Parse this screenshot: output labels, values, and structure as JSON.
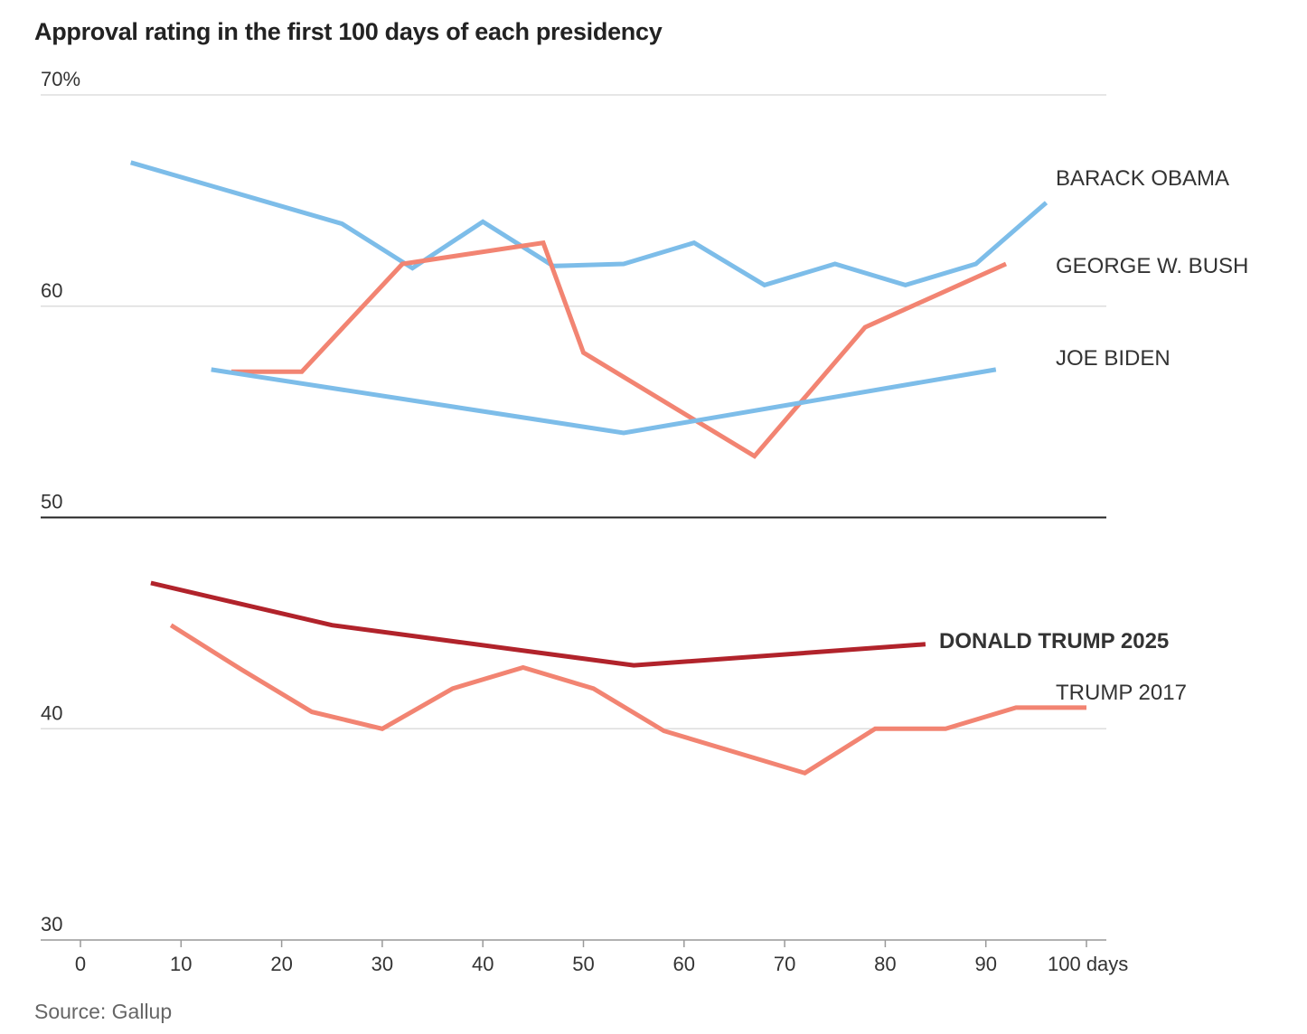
{
  "chart_data": {
    "type": "line",
    "title": "Approval rating in the first 100 days of each presidency",
    "source": "Source: Gallup",
    "xlabel": "",
    "ylabel": "",
    "xlim": [
      0,
      100
    ],
    "ylim": [
      30,
      70
    ],
    "x_ticks": [
      0,
      10,
      20,
      30,
      40,
      50,
      60,
      70,
      80,
      90,
      100
    ],
    "x_tick_labels": [
      "0",
      "10",
      "20",
      "30",
      "40",
      "50",
      "60",
      "70",
      "80",
      "90",
      "100 days"
    ],
    "y_ticks": [
      30,
      40,
      50,
      60,
      70
    ],
    "y_tick_labels": [
      "30",
      "40",
      "50",
      "60",
      "70%"
    ],
    "reference_line": 50,
    "series": [
      {
        "name": "BARACK OBAMA",
        "color": "#7dbde9",
        "bold": false,
        "x": [
          5,
          26,
          33,
          40,
          47,
          54,
          61,
          68,
          75,
          82,
          89,
          96
        ],
        "y": [
          66.8,
          63.9,
          61.8,
          64,
          61.9,
          62,
          63,
          61,
          62,
          61,
          62,
          64.9
        ]
      },
      {
        "name": "GEORGE W. BUSH",
        "color": "#f28472",
        "bold": false,
        "x": [
          15,
          22,
          32,
          46,
          50,
          67,
          78,
          92
        ],
        "y": [
          56.9,
          56.9,
          62,
          63,
          57.8,
          52.9,
          59,
          62
        ]
      },
      {
        "name": "JOE BIDEN",
        "color": "#7dbde9",
        "bold": false,
        "x": [
          13,
          54,
          91
        ],
        "y": [
          57,
          54,
          57
        ]
      },
      {
        "name": "DONALD TRUMP 2025",
        "color": "#b1232b",
        "bold": true,
        "x": [
          7,
          25,
          55,
          84
        ],
        "y": [
          46.9,
          44.9,
          43,
          44
        ]
      },
      {
        "name": "TRUMP 2017",
        "color": "#f28472",
        "bold": false,
        "x": [
          9,
          16,
          23,
          30,
          37,
          44,
          51,
          58,
          72,
          79,
          86,
          93,
          100
        ],
        "y": [
          44.9,
          42.8,
          40.8,
          40,
          41.9,
          42.9,
          41.9,
          39.9,
          37.9,
          40,
          40,
          41,
          41
        ]
      }
    ]
  }
}
